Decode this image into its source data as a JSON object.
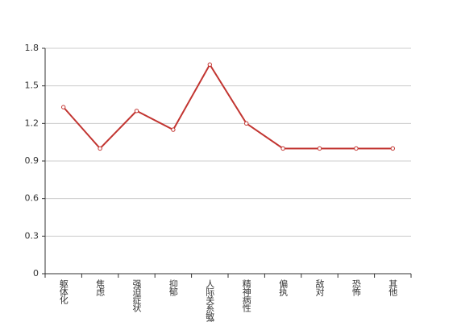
{
  "chart_data": {
    "type": "line",
    "categories": [
      "躯体化",
      "焦虑",
      "强迫症状",
      "抑郁",
      "人际关系敏感",
      "精神病性",
      "偏执",
      "敌对",
      "恐怖",
      "其他"
    ],
    "values": [
      1.33,
      1.0,
      1.3,
      1.15,
      1.67,
      1.2,
      1.0,
      1.0,
      1.0,
      1.0
    ],
    "color": "#c23531",
    "ylim": [
      0,
      1.8
    ],
    "yticks": [
      0,
      0.3,
      0.6,
      0.9,
      1.2,
      1.5,
      1.8
    ],
    "grid": true
  }
}
